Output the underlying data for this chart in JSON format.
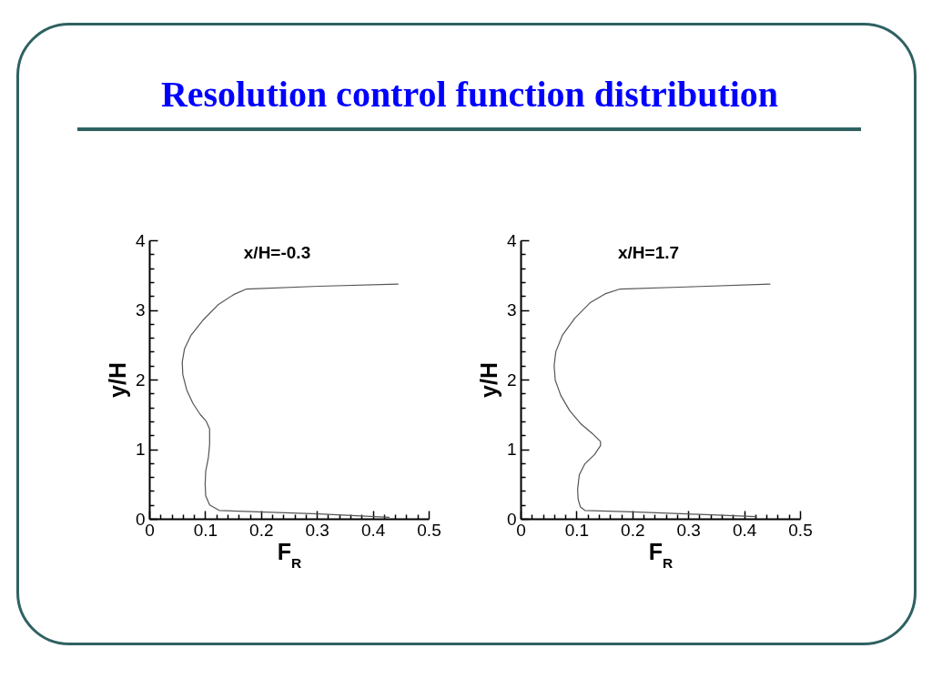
{
  "chart_data": [
    {
      "type": "line",
      "title": "x/H=-0.3",
      "xlabel": "F$_{R}$",
      "ylabel": "y/H",
      "annotations": [
        "Resolution control function distribution"
      ],
      "xlim": [
        0,
        0.5
      ],
      "xticks": [
        0,
        {
          "value": 0.02,
          "label": null
        },
        {
          "value": 0.04,
          "label": null
        },
        {
          "value": 0.06,
          "label": null
        },
        {
          "value": 0.08,
          "label": null
        },
        0.1,
        {
          "value": 0.12,
          "label": null
        },
        {
          "value": 0.14,
          "label": null
        },
        {
          "value": 0.16,
          "label": null
        },
        {
          "value": 0.18,
          "label": null
        },
        0.2,
        {
          "value": 0.22,
          "label": null
        },
        {
          "value": 0.24,
          "label": null
        },
        {
          "value": 0.26,
          "label": null
        },
        {
          "value": 0.28,
          "label": null
        },
        0.3,
        {
          "value": 0.32,
          "label": null
        },
        {
          "value": 0.34,
          "label": null
        },
        {
          "value": 0.36,
          "label": null
        },
        {
          "value": 0.38,
          "label": null
        },
        0.4,
        {
          "value": 0.42,
          "label": null
        },
        {
          "value": 0.44,
          "label": null
        },
        {
          "value": 0.46,
          "label": null
        },
        {
          "value": 0.48,
          "label": null
        },
        0.5
      ],
      "ylim": [
        0,
        4
      ],
      "yticks": [
        0,
        {
          "value": 0.2,
          "label": null
        },
        {
          "value": 0.4,
          "label": null
        },
        {
          "value": 0.6,
          "label": null
        },
        {
          "value": 0.8,
          "label": null
        },
        1,
        {
          "value": 1.2,
          "label": null
        },
        {
          "value": 1.4,
          "label": null
        },
        {
          "value": 1.6,
          "label": null
        },
        {
          "value": 1.8,
          "label": null
        },
        2,
        {
          "value": 2.2,
          "label": null
        },
        {
          "value": 2.4,
          "label": null
        },
        {
          "value": 2.6,
          "label": null
        },
        {
          "value": 2.8,
          "label": null
        },
        3,
        {
          "value": 3.2,
          "label": null
        },
        {
          "value": 3.4,
          "label": null
        },
        {
          "value": 3.6,
          "label": null
        },
        {
          "value": 3.8,
          "label": null
        },
        4
      ],
      "series": [
        {
          "color": "#555555",
          "x": [
            0.445,
            0.303,
            0.174,
            0.151,
            0.124,
            0.097,
            0.075,
            0.063,
            0.059,
            0.06,
            0.067,
            0.078,
            0.091,
            0.102,
            0.108,
            0.108,
            0.106,
            0.101,
            0.1,
            0.101,
            0.108,
            0.125,
            0.195,
            0.303,
            0.429
          ],
          "values": [
            3.37,
            3.34,
            3.3,
            3.22,
            3.08,
            2.86,
            2.64,
            2.44,
            2.25,
            2.07,
            1.85,
            1.66,
            1.5,
            1.4,
            1.29,
            1.07,
            0.89,
            0.68,
            0.5,
            0.33,
            0.2,
            0.12,
            0.1,
            0.07,
            0.02
          ]
        }
      ]
    },
    {
      "type": "line",
      "title": "x/H=1.7",
      "xlabel": "F$_{R}$",
      "ylabel": "y/H",
      "xlim": [
        0,
        0.5
      ],
      "xticks": [
        0,
        {
          "value": 0.02,
          "label": null
        },
        {
          "value": 0.04,
          "label": null
        },
        {
          "value": 0.06,
          "label": null
        },
        {
          "value": 0.08,
          "label": null
        },
        0.1,
        {
          "value": 0.12,
          "label": null
        },
        {
          "value": 0.14,
          "label": null
        },
        {
          "value": 0.16,
          "label": null
        },
        {
          "value": 0.18,
          "label": null
        },
        0.2,
        {
          "value": 0.22,
          "label": null
        },
        {
          "value": 0.24,
          "label": null
        },
        {
          "value": 0.26,
          "label": null
        },
        {
          "value": 0.28,
          "label": null
        },
        0.3,
        {
          "value": 0.32,
          "label": null
        },
        {
          "value": 0.34,
          "label": null
        },
        {
          "value": 0.36,
          "label": null
        },
        {
          "value": 0.38,
          "label": null
        },
        0.4,
        {
          "value": 0.42,
          "label": null
        },
        {
          "value": 0.44,
          "label": null
        },
        {
          "value": 0.46,
          "label": null
        },
        {
          "value": 0.48,
          "label": null
        },
        0.5
      ],
      "ylim": [
        0,
        4
      ],
      "yticks": [
        0,
        {
          "value": 0.2,
          "label": null
        },
        {
          "value": 0.4,
          "label": null
        },
        {
          "value": 0.6,
          "label": null
        },
        {
          "value": 0.8,
          "label": null
        },
        1,
        {
          "value": 1.2,
          "label": null
        },
        {
          "value": 1.4,
          "label": null
        },
        {
          "value": 1.6,
          "label": null
        },
        {
          "value": 1.8,
          "label": null
        },
        2,
        {
          "value": 2.2,
          "label": null
        },
        {
          "value": 2.4,
          "label": null
        },
        {
          "value": 2.6,
          "label": null
        },
        {
          "value": 2.8,
          "label": null
        },
        3,
        {
          "value": 3.2,
          "label": null
        },
        {
          "value": 3.4,
          "label": null
        },
        {
          "value": 3.6,
          "label": null
        },
        {
          "value": 3.8,
          "label": null
        },
        4
      ],
      "series": [
        {
          "color": "#555555",
          "x": [
            0.446,
            0.297,
            0.178,
            0.151,
            0.124,
            0.097,
            0.075,
            0.063,
            0.06,
            0.062,
            0.072,
            0.088,
            0.107,
            0.129,
            0.143,
            0.143,
            0.132,
            0.115,
            0.105,
            0.102,
            0.103,
            0.107,
            0.115,
            0.199,
            0.297,
            0.422
          ],
          "values": [
            3.37,
            3.33,
            3.3,
            3.23,
            3.1,
            2.88,
            2.64,
            2.4,
            2.2,
            1.99,
            1.77,
            1.55,
            1.37,
            1.22,
            1.11,
            1.05,
            0.92,
            0.79,
            0.63,
            0.42,
            0.28,
            0.17,
            0.12,
            0.1,
            0.07,
            0.03
          ]
        }
      ]
    }
  ]
}
